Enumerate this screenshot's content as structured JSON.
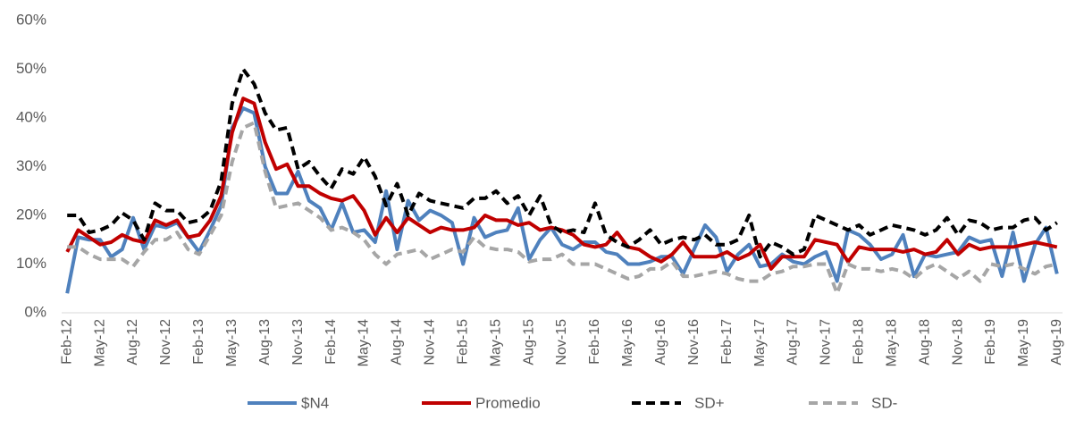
{
  "chart_data": {
    "type": "line",
    "categories": [
      "Feb-12",
      null,
      null,
      "May-12",
      null,
      null,
      "Aug-12",
      null,
      null,
      "Nov-12",
      null,
      null,
      "Feb-13",
      null,
      null,
      "May-13",
      null,
      null,
      "Aug-13",
      null,
      null,
      "Nov-13",
      null,
      null,
      "Feb-14",
      null,
      null,
      "May-14",
      null,
      null,
      "Aug-14",
      null,
      null,
      "Nov-14",
      null,
      null,
      "Feb-15",
      null,
      null,
      "May-15",
      null,
      null,
      "Aug-15",
      null,
      null,
      "Nov-15",
      null,
      null,
      "Feb-16",
      null,
      null,
      "May-16",
      null,
      null,
      "Aug-16",
      null,
      null,
      "Nov-16",
      null,
      null,
      "Feb-17",
      null,
      null,
      "May-17",
      null,
      null,
      "Aug-17",
      null,
      null,
      "Nov-17",
      null,
      null,
      "Feb-18",
      null,
      null,
      "May-18",
      null,
      null,
      "Aug-18",
      null,
      null,
      "Nov-18",
      null,
      null,
      "Feb-19",
      null,
      null,
      "May-19",
      null,
      null,
      "Aug-19"
    ],
    "series": [
      {
        "name": "$N4",
        "color": "#4f81bd",
        "dashed": false,
        "values": [
          4,
          15.5,
          15,
          15,
          11.5,
          13,
          19.5,
          13,
          18,
          17.5,
          18.5,
          15.5,
          12.5,
          17,
          22,
          38,
          42,
          41,
          30,
          24.5,
          24.5,
          29,
          23,
          21.5,
          17,
          22.5,
          16.5,
          17,
          14.5,
          25,
          13,
          23,
          19,
          21,
          20,
          18.5,
          10,
          19.5,
          15.5,
          16.5,
          17,
          21.5,
          11,
          15,
          17.5,
          14,
          13,
          14.5,
          14.5,
          12.5,
          12,
          10,
          10,
          10.5,
          11.5,
          11.5,
          8,
          13,
          18,
          15.5,
          8.5,
          12,
          14,
          9.5,
          10,
          12,
          10.5,
          10,
          11.5,
          12.5,
          6.5,
          17,
          16,
          14,
          11,
          12,
          16,
          7.5,
          12,
          11.5,
          12,
          12.5,
          15.5,
          14.5,
          15,
          7.5,
          16.5,
          6.5,
          14,
          17.5,
          8
        ]
      },
      {
        "name": "Promedio",
        "color": "#c00000",
        "dashed": false,
        "values": [
          12.5,
          17,
          15.5,
          14,
          14.5,
          16,
          15,
          14.5,
          19,
          18,
          19,
          15.5,
          16,
          19,
          24,
          37,
          44,
          43,
          35,
          29.5,
          30.5,
          26,
          26,
          24.5,
          23.5,
          23,
          24,
          21,
          16,
          19.5,
          16.5,
          19.5,
          18,
          16.5,
          17.5,
          17,
          17,
          17.5,
          20,
          19,
          19,
          18,
          18.5,
          17,
          17.5,
          17,
          16,
          14,
          13.5,
          14,
          16.5,
          13.5,
          13,
          11.5,
          10.5,
          12,
          14.5,
          11.5,
          11.5,
          11.5,
          12.5,
          11,
          12,
          14,
          9,
          11.5,
          11.5,
          11.5,
          15,
          14.5,
          14,
          10.5,
          13.5,
          13,
          13,
          13,
          12.5,
          13,
          12,
          12.5,
          15,
          12,
          14,
          13,
          13.5,
          13.5,
          13.5,
          14,
          14.5,
          14,
          13.5
        ]
      },
      {
        "name": "SD+",
        "color": "#000000",
        "dashed": true,
        "values": [
          20,
          20,
          16.5,
          17,
          18,
          20.5,
          19,
          15,
          22.5,
          21,
          21,
          18.5,
          19,
          21,
          27,
          43,
          50,
          47,
          41,
          37.5,
          38,
          29.5,
          31,
          28,
          25.5,
          29.5,
          28.5,
          32,
          28,
          22,
          26.5,
          20,
          24.5,
          23,
          22.5,
          22,
          21.5,
          23.5,
          23.5,
          25,
          22.5,
          24,
          20,
          24,
          18,
          16.5,
          17,
          16.5,
          22.5,
          16,
          14.5,
          13.5,
          15,
          17,
          14,
          15,
          15.5,
          15,
          16,
          14,
          14,
          15,
          20,
          11.5,
          14.5,
          13.5,
          12,
          13,
          20,
          19,
          18,
          17,
          18,
          16,
          17,
          18,
          17.5,
          17,
          16,
          17,
          19.5,
          16,
          19,
          18.5,
          17,
          17.5,
          17.5,
          19,
          19.5,
          17,
          18.5
        ]
      },
      {
        "name": "SD-",
        "color": "#a6a6a6",
        "dashed": true,
        "values": [
          13.5,
          13.5,
          12,
          11,
          11,
          11,
          9.5,
          12.5,
          15,
          15,
          16.5,
          13,
          12,
          16,
          20,
          31,
          38,
          39,
          29,
          21.5,
          22,
          22.5,
          21,
          19.5,
          17,
          17.5,
          16.5,
          15,
          12,
          10,
          12,
          12.5,
          13,
          11,
          12,
          13,
          12.5,
          15.5,
          13.5,
          13,
          13,
          12.5,
          10.5,
          11,
          11,
          12,
          10,
          10,
          10,
          9,
          8,
          7,
          7.5,
          9,
          9,
          10.5,
          7.5,
          7.5,
          8,
          8.5,
          8,
          7,
          6.5,
          6.5,
          8,
          8.5,
          9.5,
          9.5,
          10,
          10,
          4,
          10,
          9,
          9,
          8.5,
          9,
          8.5,
          7,
          9,
          10,
          8.5,
          7,
          8.5,
          6.5,
          10,
          9.5,
          10,
          9,
          8,
          9.5,
          10
        ]
      }
    ],
    "ylim": [
      0,
      60
    ],
    "yticks": [
      {
        "value": 0,
        "label": "0%"
      },
      {
        "value": 10,
        "label": "10%"
      },
      {
        "value": 20,
        "label": "20%"
      },
      {
        "value": 30,
        "label": "30%"
      },
      {
        "value": 40,
        "label": "40%"
      },
      {
        "value": 50,
        "label": "50%"
      },
      {
        "value": 60,
        "label": "60%"
      }
    ],
    "grid": false
  }
}
